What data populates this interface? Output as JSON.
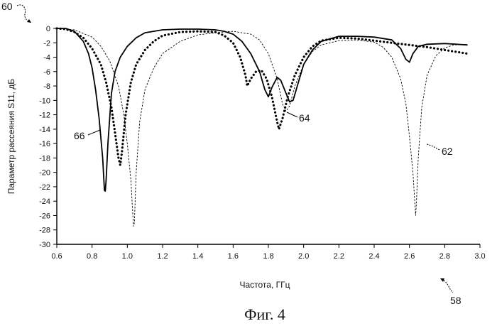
{
  "chart_data": {
    "type": "line",
    "title": "",
    "xlabel": "Частота, ГГц",
    "ylabel": "Параметр рассеяния S11, дБ",
    "xlim": [
      0.6,
      3.0
    ],
    "ylim": [
      -30,
      0
    ],
    "x_ticks": [
      "0.6",
      "0.8",
      "1.0",
      "1.2",
      "1.4",
      "1.6",
      "1.8",
      "2.0",
      "2.2",
      "2.4",
      "2.6",
      "2.8",
      "3.0"
    ],
    "y_ticks": [
      "0",
      "-2",
      "-4",
      "-6",
      "-8",
      "-10",
      "-12",
      "-14",
      "-16",
      "-18",
      "-20",
      "-22",
      "-24",
      "-26",
      "-28",
      "-30"
    ],
    "grid": false,
    "series": [
      {
        "name": "66",
        "style": "solid",
        "points": [
          [
            0.6,
            0
          ],
          [
            0.65,
            0
          ],
          [
            0.7,
            -0.4
          ],
          [
            0.75,
            -1.8
          ],
          [
            0.78,
            -3.5
          ],
          [
            0.8,
            -5.5
          ],
          [
            0.82,
            -8.5
          ],
          [
            0.84,
            -12.5
          ],
          [
            0.86,
            -18
          ],
          [
            0.87,
            -22.5
          ],
          [
            0.875,
            -22.6
          ],
          [
            0.88,
            -21
          ],
          [
            0.89,
            -16
          ],
          [
            0.91,
            -9
          ],
          [
            0.93,
            -6
          ],
          [
            0.96,
            -4
          ],
          [
            1.0,
            -2.5
          ],
          [
            1.05,
            -1.3
          ],
          [
            1.1,
            -0.6
          ],
          [
            1.2,
            -0.2
          ],
          [
            1.3,
            -0.1
          ],
          [
            1.4,
            -0.1
          ],
          [
            1.5,
            -0.2
          ],
          [
            1.55,
            -0.4
          ],
          [
            1.6,
            -0.8
          ],
          [
            1.65,
            -1.8
          ],
          [
            1.7,
            -3.5
          ],
          [
            1.75,
            -6
          ],
          [
            1.78,
            -8.5
          ],
          [
            1.8,
            -9.5
          ],
          [
            1.82,
            -8.2
          ],
          [
            1.85,
            -6.8
          ],
          [
            1.87,
            -7.2
          ],
          [
            1.9,
            -9
          ],
          [
            1.92,
            -10.2
          ],
          [
            1.94,
            -10
          ],
          [
            1.97,
            -7.5
          ],
          [
            2.0,
            -5
          ],
          [
            2.05,
            -3
          ],
          [
            2.1,
            -1.8
          ],
          [
            2.2,
            -1.1
          ],
          [
            2.3,
            -1.1
          ],
          [
            2.4,
            -1.2
          ],
          [
            2.5,
            -1.6
          ],
          [
            2.55,
            -2.8
          ],
          [
            2.58,
            -4.3
          ],
          [
            2.6,
            -4.7
          ],
          [
            2.62,
            -3.5
          ],
          [
            2.65,
            -2.5
          ],
          [
            2.7,
            -2.2
          ],
          [
            2.8,
            -2.1
          ],
          [
            2.93,
            -2.3
          ]
        ]
      },
      {
        "name": "64",
        "style": "dotted",
        "points": [
          [
            0.6,
            0
          ],
          [
            0.65,
            -0.1
          ],
          [
            0.7,
            -0.5
          ],
          [
            0.75,
            -1.3
          ],
          [
            0.8,
            -2.8
          ],
          [
            0.85,
            -5
          ],
          [
            0.88,
            -7.5
          ],
          [
            0.91,
            -11
          ],
          [
            0.93,
            -14.5
          ],
          [
            0.95,
            -18
          ],
          [
            0.96,
            -19
          ],
          [
            0.97,
            -17
          ],
          [
            0.99,
            -12
          ],
          [
            1.02,
            -7.5
          ],
          [
            1.05,
            -5
          ],
          [
            1.1,
            -3
          ],
          [
            1.15,
            -1.8
          ],
          [
            1.2,
            -1
          ],
          [
            1.3,
            -0.5
          ],
          [
            1.4,
            -0.4
          ],
          [
            1.5,
            -0.5
          ],
          [
            1.55,
            -1
          ],
          [
            1.6,
            -2
          ],
          [
            1.64,
            -4
          ],
          [
            1.67,
            -6.5
          ],
          [
            1.68,
            -8
          ],
          [
            1.7,
            -7
          ],
          [
            1.73,
            -6
          ],
          [
            1.76,
            -5.8
          ],
          [
            1.79,
            -7
          ],
          [
            1.82,
            -9.5
          ],
          [
            1.85,
            -13
          ],
          [
            1.86,
            -14
          ],
          [
            1.88,
            -12.5
          ],
          [
            1.91,
            -9.5
          ],
          [
            1.95,
            -6.5
          ],
          [
            2.0,
            -4
          ],
          [
            2.05,
            -2.5
          ],
          [
            2.1,
            -1.7
          ],
          [
            2.2,
            -1.3
          ],
          [
            2.3,
            -1.4
          ],
          [
            2.4,
            -1.7
          ],
          [
            2.5,
            -2
          ],
          [
            2.6,
            -2.3
          ],
          [
            2.7,
            -2.6
          ],
          [
            2.8,
            -3
          ],
          [
            2.93,
            -3.5
          ]
        ]
      },
      {
        "name": "62",
        "style": "dashed",
        "points": [
          [
            0.6,
            0
          ],
          [
            0.7,
            -0.2
          ],
          [
            0.8,
            -1.2
          ],
          [
            0.85,
            -2.5
          ],
          [
            0.9,
            -4.5
          ],
          [
            0.95,
            -8
          ],
          [
            0.98,
            -12
          ],
          [
            1.0,
            -16
          ],
          [
            1.02,
            -21
          ],
          [
            1.035,
            -27.5
          ],
          [
            1.04,
            -27
          ],
          [
            1.05,
            -20
          ],
          [
            1.07,
            -13
          ],
          [
            1.1,
            -8.5
          ],
          [
            1.15,
            -5.5
          ],
          [
            1.2,
            -3.5
          ],
          [
            1.3,
            -1.8
          ],
          [
            1.4,
            -0.9
          ],
          [
            1.5,
            -0.6
          ],
          [
            1.6,
            -0.4
          ],
          [
            1.7,
            -0.8
          ],
          [
            1.75,
            -1.6
          ],
          [
            1.8,
            -3.5
          ],
          [
            1.85,
            -7
          ],
          [
            1.88,
            -10.5
          ],
          [
            1.9,
            -11.5
          ],
          [
            1.92,
            -10.8
          ],
          [
            1.95,
            -8
          ],
          [
            2.0,
            -5
          ],
          [
            2.05,
            -3.2
          ],
          [
            2.1,
            -2.3
          ],
          [
            2.2,
            -1.7
          ],
          [
            2.3,
            -1.6
          ],
          [
            2.4,
            -1.9
          ],
          [
            2.45,
            -2.6
          ],
          [
            2.5,
            -4
          ],
          [
            2.55,
            -7
          ],
          [
            2.58,
            -10.5
          ],
          [
            2.6,
            -15
          ],
          [
            2.62,
            -20
          ],
          [
            2.635,
            -26
          ],
          [
            2.64,
            -24
          ],
          [
            2.65,
            -18
          ],
          [
            2.67,
            -11
          ],
          [
            2.7,
            -6.5
          ],
          [
            2.75,
            -3.8
          ],
          [
            2.8,
            -2.7
          ],
          [
            2.85,
            -2.3
          ],
          [
            2.93,
            -2.2
          ]
        ]
      }
    ],
    "annotations": [
      "60",
      "66",
      "64",
      "62",
      "58"
    ],
    "caption": "Фиг. 4"
  }
}
